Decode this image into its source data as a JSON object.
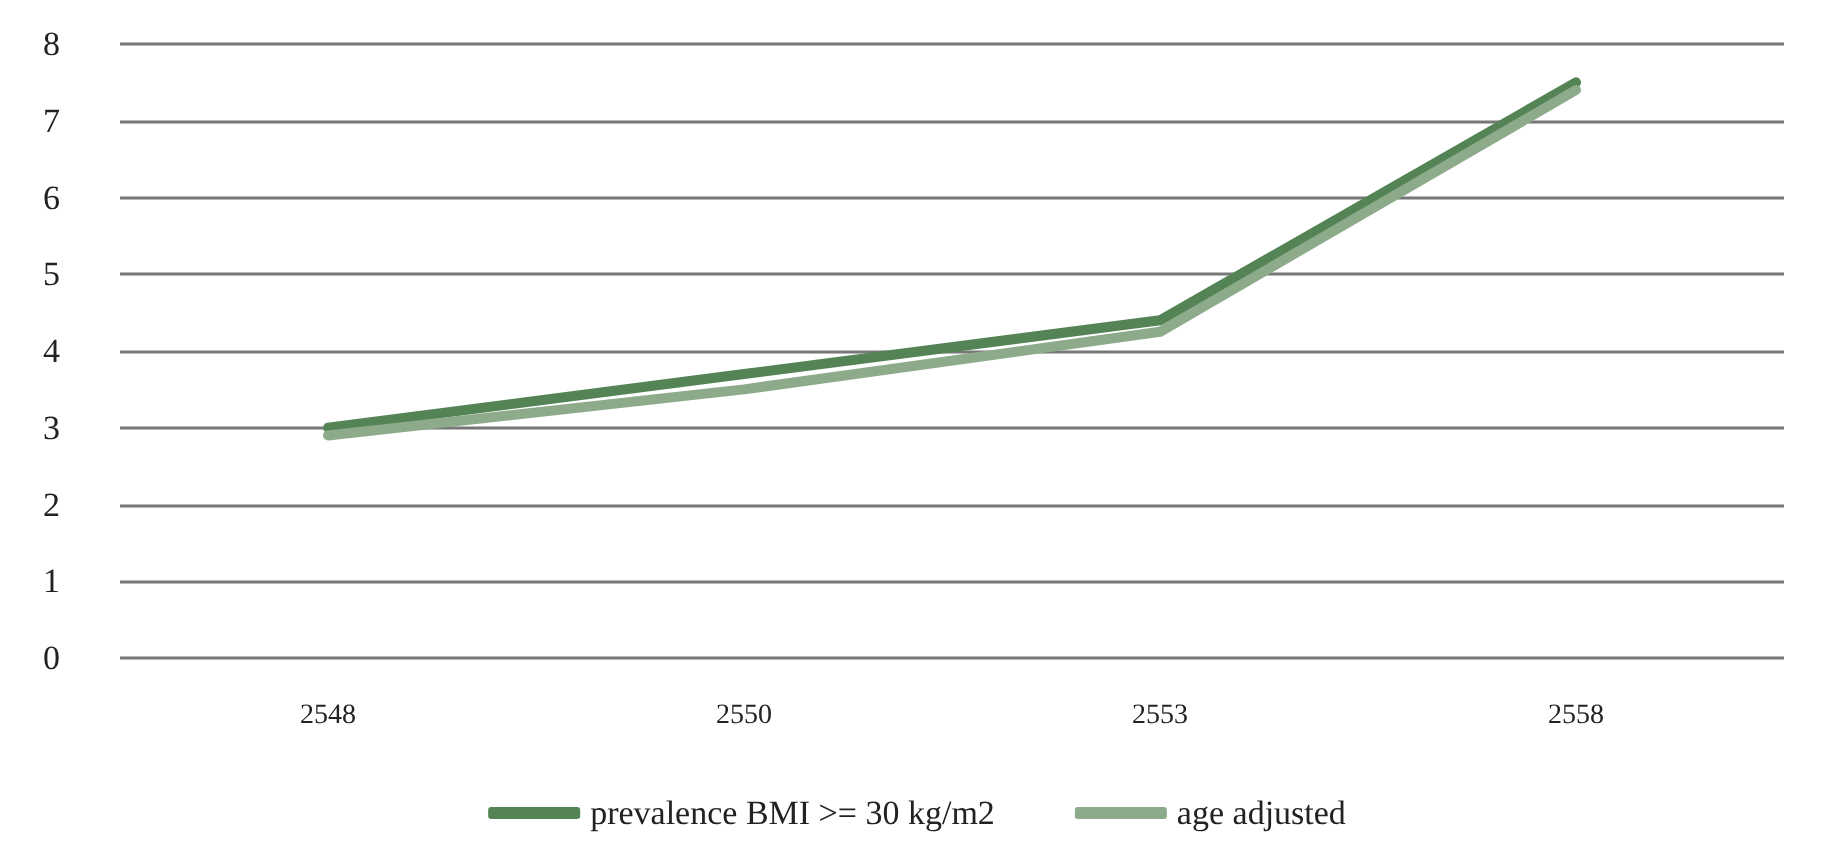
{
  "chart_data": {
    "type": "line",
    "categories": [
      "2548",
      "2550",
      "2553",
      "2558"
    ],
    "series": [
      {
        "name": "prevalence BMI >= 30 kg/m2",
        "color": "#548456",
        "values": [
          3.0,
          3.7,
          4.4,
          7.5
        ]
      },
      {
        "name": "age adjusted",
        "color": "#8daa8a",
        "values": [
          2.9,
          3.5,
          4.25,
          7.4
        ]
      }
    ],
    "ylim": [
      0,
      8
    ],
    "yticks": [
      0,
      1,
      2,
      3,
      4,
      5,
      6,
      7,
      8
    ],
    "grid": "y",
    "legend": "bottom",
    "marker": "none",
    "line_style": "solid"
  }
}
